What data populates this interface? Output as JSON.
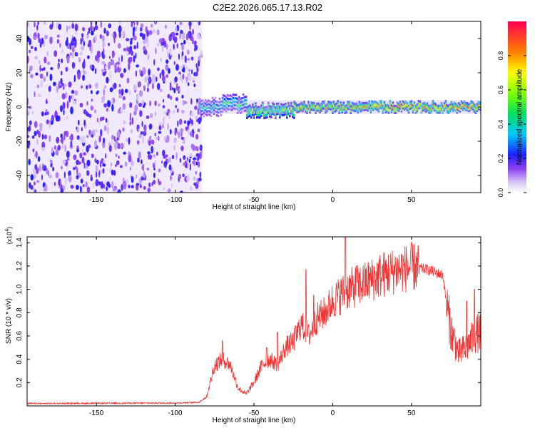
{
  "figure": {
    "title": "C2E2.2026.065.17.13.R02"
  },
  "chart_data": [
    {
      "type": "heatmap",
      "name": "spectrogram",
      "xlabel": "Height of straight line (km)",
      "ylabel": "Frequency (Hz)",
      "xlim": [
        -194,
        94
      ],
      "ylim": [
        -50,
        50
      ],
      "xticks": [
        -150,
        -100,
        -50,
        0,
        50
      ],
      "yticks": [
        -40,
        -20,
        0,
        20,
        40
      ],
      "noise_region_x": [
        -194,
        -83
      ],
      "signal_band_segments": [
        {
          "x": [
            -85,
            -70
          ],
          "freq_center": 0,
          "freq_halfwidth": 4,
          "peak_amplitude": 0.45
        },
        {
          "x": [
            -70,
            -55
          ],
          "freq_center": 2,
          "freq_halfwidth": 4,
          "peak_amplitude": 0.55
        },
        {
          "x": [
            -55,
            -25
          ],
          "freq_center": -2,
          "freq_halfwidth": 3,
          "peak_amplitude": 0.7
        },
        {
          "x": [
            -25,
            0
          ],
          "freq_center": 0,
          "freq_halfwidth": 2,
          "peak_amplitude": 0.85
        },
        {
          "x": [
            0,
            25
          ],
          "freq_center": 0,
          "freq_halfwidth": 2,
          "peak_amplitude": 0.9
        },
        {
          "x": [
            25,
            94
          ],
          "freq_center": 0,
          "freq_halfwidth": 2,
          "peak_amplitude": 1.0
        }
      ],
      "colorbar": {
        "label": "Normalized spectral amplitude",
        "range": [
          0,
          1
        ],
        "ticks": [
          "0.0",
          "0.2",
          "0.4",
          "0.6",
          "0.8"
        ],
        "tick_values": [
          0,
          0.2,
          0.4,
          0.6,
          0.8
        ]
      }
    },
    {
      "type": "line",
      "name": "snr",
      "xlabel": "Height of straight line (km)",
      "ylabel": "SNR (10 * v/v)",
      "y_multiplier": "(x10",
      "y_multiplier_exp": "4",
      "y_multiplier_close": ")",
      "xlim": [
        -194,
        94
      ],
      "ylim": [
        0,
        1.45
      ],
      "xticks": [
        -150,
        -100,
        -50,
        0,
        50
      ],
      "yticks": [
        0.2,
        0.4,
        0.6,
        0.8,
        1.0,
        1.2,
        1.4
      ],
      "ytick_labels": [
        "0.2",
        "0.4",
        "0.6",
        "0.8",
        "1.0",
        "1.2",
        "1.4"
      ],
      "color": "#ee3333",
      "envelope": [
        [
          -194,
          0.02
        ],
        [
          -100,
          0.025
        ],
        [
          -85,
          0.03
        ],
        [
          -80,
          0.08
        ],
        [
          -75,
          0.35
        ],
        [
          -70,
          0.4
        ],
        [
          -65,
          0.35
        ],
        [
          -60,
          0.15
        ],
        [
          -55,
          0.1
        ],
        [
          -50,
          0.2
        ],
        [
          -45,
          0.35
        ],
        [
          -40,
          0.4
        ],
        [
          -35,
          0.35
        ],
        [
          -30,
          0.5
        ],
        [
          -25,
          0.55
        ],
        [
          -20,
          0.7
        ],
        [
          -15,
          0.6
        ],
        [
          -10,
          0.75
        ],
        [
          -5,
          0.8
        ],
        [
          0,
          0.9
        ],
        [
          10,
          1.0
        ],
        [
          20,
          1.05
        ],
        [
          30,
          1.12
        ],
        [
          40,
          1.16
        ],
        [
          50,
          1.19
        ],
        [
          60,
          1.17
        ],
        [
          70,
          1.12
        ],
        [
          72,
          0.9
        ],
        [
          75,
          0.65
        ],
        [
          80,
          0.45
        ],
        [
          85,
          0.5
        ],
        [
          90,
          0.6
        ],
        [
          94,
          0.65
        ]
      ],
      "spikes": [
        {
          "x": -70,
          "y": 0.56
        },
        {
          "x": -42,
          "y": 0.5
        },
        {
          "x": -35,
          "y": 0.63
        },
        {
          "x": -17,
          "y": 1.17
        },
        {
          "x": -12,
          "y": 0.95
        },
        {
          "x": 8,
          "y": 1.45
        },
        {
          "x": 15,
          "y": 1.2
        },
        {
          "x": 40,
          "y": 1.22
        },
        {
          "x": 85,
          "y": 0.9
        },
        {
          "x": 90,
          "y": 1.0
        }
      ]
    }
  ]
}
